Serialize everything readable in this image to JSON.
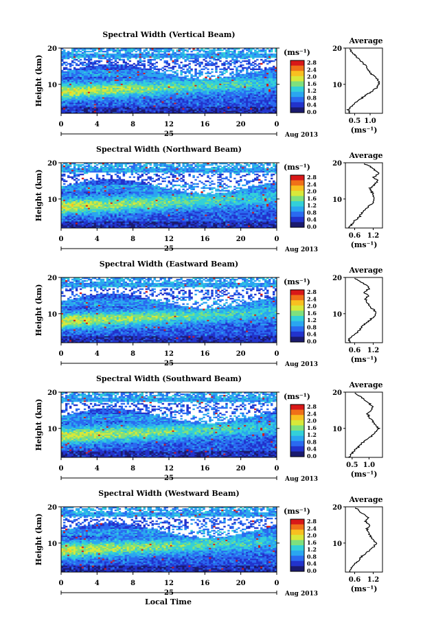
{
  "figure": {
    "xlabel": "Local Time",
    "date_label": "Aug 2013",
    "day_label": "25",
    "avg_title": "Average",
    "unit_label": "(ms⁻¹)",
    "ylabel": "Height (km)",
    "colorbar_ticks": [
      "0.0",
      "0.4",
      "0.8",
      "1.2",
      "1.6",
      "2.0",
      "2.4",
      "2.8"
    ],
    "x_ticks": [
      "0",
      "4",
      "8",
      "12",
      "16",
      "20",
      "0"
    ],
    "y_ticks": [
      "20",
      "10"
    ]
  },
  "colormap": [
    "#1a1a6e",
    "#2233cc",
    "#2a6af0",
    "#2aa6f0",
    "#33d0d8",
    "#7ee07e",
    "#d8e83a",
    "#f8c020",
    "#f07018",
    "#d81818"
  ],
  "chart_data": [
    {
      "type": "heatmap",
      "title": "Spectral Width (Vertical Beam)",
      "x": [
        0,
        24
      ],
      "xlim": [
        0,
        24
      ],
      "ylim": [
        2,
        20
      ],
      "clim": [
        0,
        2.8
      ],
      "avg_xticks": [
        "0.5",
        "1.0"
      ],
      "avg_xlim": [
        0.2,
        1.4
      ],
      "avg_profile": [
        [
          2,
          0.35
        ],
        [
          3,
          0.28
        ],
        [
          4,
          0.4
        ],
        [
          5,
          0.55
        ],
        [
          6,
          0.7
        ],
        [
          7,
          0.85
        ],
        [
          8,
          1.05
        ],
        [
          9,
          1.2
        ],
        [
          10,
          1.3
        ],
        [
          11,
          1.28
        ],
        [
          12,
          1.15
        ],
        [
          13,
          1.02
        ],
        [
          14,
          0.95
        ],
        [
          15,
          0.85
        ],
        [
          16,
          0.78
        ],
        [
          17,
          0.62
        ],
        [
          18,
          0.52
        ],
        [
          19,
          0.4
        ],
        [
          20,
          0.32
        ]
      ]
    },
    {
      "type": "heatmap",
      "title": "Spectral Width (Northward Beam)",
      "x": [
        0,
        24
      ],
      "xlim": [
        0,
        24
      ],
      "ylim": [
        2,
        20
      ],
      "clim": [
        0,
        2.8
      ],
      "avg_xticks": [
        "0.6",
        "1.2"
      ],
      "avg_xlim": [
        0.3,
        1.5
      ],
      "avg_profile": [
        [
          2,
          0.4
        ],
        [
          3,
          0.5
        ],
        [
          4,
          0.6
        ],
        [
          5,
          0.75
        ],
        [
          6,
          0.82
        ],
        [
          7,
          0.92
        ],
        [
          8,
          1.05
        ],
        [
          9,
          1.18
        ],
        [
          10,
          1.25
        ],
        [
          11,
          1.22
        ],
        [
          12,
          1.15
        ],
        [
          13,
          1.1
        ],
        [
          14,
          1.25
        ],
        [
          15,
          1.35
        ],
        [
          16,
          1.2
        ],
        [
          17,
          1.38
        ],
        [
          18,
          1.25
        ],
        [
          19,
          1.1
        ],
        [
          20,
          0.85
        ]
      ]
    },
    {
      "type": "heatmap",
      "title": "Spectral Width (Eastward Beam)",
      "x": [
        0,
        24
      ],
      "xlim": [
        0,
        24
      ],
      "ylim": [
        2,
        20
      ],
      "clim": [
        0,
        2.8
      ],
      "avg_xticks": [
        "0.6",
        "1.2"
      ],
      "avg_xlim": [
        0.3,
        1.5
      ],
      "avg_profile": [
        [
          2,
          0.45
        ],
        [
          3,
          0.42
        ],
        [
          4,
          0.55
        ],
        [
          5,
          0.7
        ],
        [
          6,
          0.8
        ],
        [
          7,
          0.9
        ],
        [
          8,
          1.05
        ],
        [
          9,
          1.2
        ],
        [
          10,
          1.3
        ],
        [
          11,
          1.22
        ],
        [
          12,
          1.1
        ],
        [
          13,
          1.0
        ],
        [
          14,
          0.95
        ],
        [
          15,
          1.05
        ],
        [
          16,
          0.9
        ],
        [
          17,
          1.1
        ],
        [
          18,
          0.95
        ],
        [
          19,
          0.75
        ],
        [
          20,
          0.55
        ]
      ]
    },
    {
      "type": "heatmap",
      "title": "Spectral Width (Southward Beam)",
      "x": [
        0,
        24
      ],
      "xlim": [
        0,
        24
      ],
      "ylim": [
        2,
        20
      ],
      "clim": [
        0,
        2.8
      ],
      "avg_xticks": [
        "0.5",
        "1.0"
      ],
      "avg_xlim": [
        0.3,
        1.4
      ],
      "avg_profile": [
        [
          2,
          0.4
        ],
        [
          3,
          0.48
        ],
        [
          4,
          0.58
        ],
        [
          5,
          0.7
        ],
        [
          6,
          0.8
        ],
        [
          7,
          0.95
        ],
        [
          8,
          1.08
        ],
        [
          9,
          1.2
        ],
        [
          10,
          1.28
        ],
        [
          11,
          1.2
        ],
        [
          12,
          1.1
        ],
        [
          13,
          1.02
        ],
        [
          14,
          0.95
        ],
        [
          15,
          1.05
        ],
        [
          16,
          1.1
        ],
        [
          17,
          1.0
        ],
        [
          18,
          0.85
        ],
        [
          19,
          0.72
        ],
        [
          20,
          0.55
        ]
      ]
    },
    {
      "type": "heatmap",
      "title": "Spectral Width (Westward Beam)",
      "x": [
        0,
        24
      ],
      "xlim": [
        0,
        24
      ],
      "ylim": [
        2,
        20
      ],
      "clim": [
        0,
        2.8
      ],
      "avg_xticks": [
        "0.6",
        "1.2"
      ],
      "avg_xlim": [
        0.3,
        1.5
      ],
      "avg_profile": [
        [
          2,
          0.45
        ],
        [
          3,
          0.5
        ],
        [
          4,
          0.58
        ],
        [
          5,
          0.7
        ],
        [
          6,
          0.8
        ],
        [
          7,
          0.92
        ],
        [
          8,
          1.08
        ],
        [
          9,
          1.22
        ],
        [
          10,
          1.3
        ],
        [
          11,
          1.2
        ],
        [
          12,
          1.1
        ],
        [
          13,
          1.05
        ],
        [
          14,
          1.0
        ],
        [
          15,
          1.1
        ],
        [
          16,
          0.95
        ],
        [
          17,
          1.05
        ],
        [
          18,
          0.9
        ],
        [
          19,
          0.72
        ],
        [
          20,
          0.6
        ]
      ]
    }
  ]
}
